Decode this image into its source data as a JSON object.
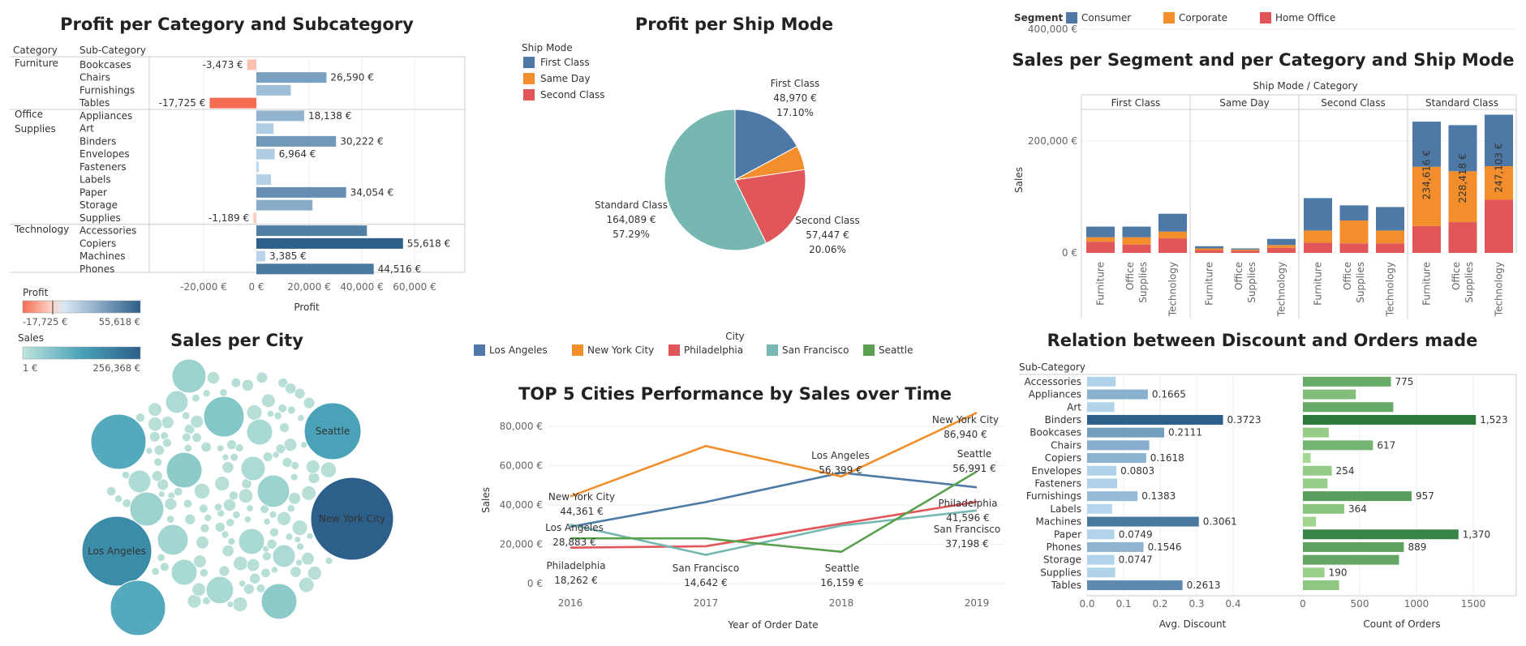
{
  "colors": {
    "consumer": "#4e79a7",
    "corporate": "#f28e2b",
    "home_office": "#e15759",
    "first_class": "#4e79a7",
    "same_day": "#f28e2b",
    "second_class": "#e15759",
    "standard_class": "#76b7b2",
    "la": "#4e79a7",
    "nyc": "#f28e2b",
    "phil": "#e15759",
    "sf": "#76b7b2",
    "seattle": "#59a14f"
  },
  "panel1": {
    "title": "Profit per Category and Subcategory",
    "col_category": "Category",
    "col_subcategory": "Sub-Category",
    "xlabel": "Profit",
    "ticks": [
      "-20,000 €",
      "0 €",
      "20,000 €",
      "40,000 €",
      "60,000 €"
    ],
    "legend_profit_title": "Profit",
    "legend_profit_min": "-17,725 €",
    "legend_profit_max": "55,618 €",
    "legend_sales_title": "Sales",
    "legend_sales_min": "1 €",
    "legend_sales_max": "256,368 €"
  },
  "panel2": {
    "title": "Profit per Ship Mode",
    "legend_title": "Ship Mode",
    "legend_items": [
      "First Class",
      "Same Day",
      "Second Class",
      "Standard Class"
    ]
  },
  "panel3": {
    "legend_title": "Segment",
    "legend_items": [
      "Consumer",
      "Corporate",
      "Home Office"
    ],
    "title": "Sales per Segment and per Category and Ship Mode",
    "header": "Ship Mode / Category",
    "ylabel": "Sales",
    "yticks": [
      "400,000 €",
      "200,000 €",
      "0 €"
    ]
  },
  "panel4": {
    "title": "Sales per City",
    "bubble_labels": [
      "Seattle",
      "New York City",
      "Los Angeles"
    ]
  },
  "panel5": {
    "legend_title": "City",
    "legend_items": [
      "Los Angeles",
      "New York City",
      "Philadelphia",
      "San Francisco",
      "Seattle"
    ],
    "title": "TOP 5 Cities Performance by Sales over Time",
    "ylabel": "Sales",
    "xlabel": "Year of Order Date",
    "yticks": [
      "80,000 €",
      "60,000 €",
      "40,000 €",
      "20,000 €",
      "0 €"
    ]
  },
  "panel6": {
    "title": "Relation between Discount and Orders made",
    "col_subcategory": "Sub-Category",
    "xlabel_left": "Avg. Discount",
    "xlabel_right": "Count of Orders",
    "ticks_left": [
      "0.0",
      "0.1",
      "0.2",
      "0.3",
      "0.4"
    ],
    "ticks_right": [
      "0",
      "500",
      "1000",
      "1500"
    ]
  },
  "chart_data": [
    {
      "type": "bar",
      "title": "Profit per Category and Subcategory",
      "xlabel": "Profit",
      "xlim": [
        -30000,
        78000
      ],
      "groups": [
        {
          "category": "Furniture",
          "rows": [
            {
              "sub": "Bookcases",
              "value": -3473,
              "label": "-3,473 €"
            },
            {
              "sub": "Chairs",
              "value": 26590,
              "label": "26,590 €"
            },
            {
              "sub": "Furnishings",
              "value": 13059,
              "label": ""
            },
            {
              "sub": "Tables",
              "value": -17725,
              "label": "-17,725 €"
            }
          ]
        },
        {
          "category": "Office Supplies",
          "rows": [
            {
              "sub": "Appliances",
              "value": 18138,
              "label": "18,138 €"
            },
            {
              "sub": "Art",
              "value": 6528,
              "label": ""
            },
            {
              "sub": "Binders",
              "value": 30222,
              "label": "30,222 €"
            },
            {
              "sub": "Envelopes",
              "value": 6964,
              "label": "6,964 €"
            },
            {
              "sub": "Fasteners",
              "value": 950,
              "label": ""
            },
            {
              "sub": "Labels",
              "value": 5546,
              "label": ""
            },
            {
              "sub": "Paper",
              "value": 34054,
              "label": "34,054 €"
            },
            {
              "sub": "Storage",
              "value": 21279,
              "label": ""
            },
            {
              "sub": "Supplies",
              "value": -1189,
              "label": "-1,189 €"
            }
          ]
        },
        {
          "category": "Technology",
          "rows": [
            {
              "sub": "Accessories",
              "value": 41937,
              "label": ""
            },
            {
              "sub": "Copiers",
              "value": 55618,
              "label": "55,618 €"
            },
            {
              "sub": "Machines",
              "value": 3385,
              "label": "3,385 €"
            },
            {
              "sub": "Phones",
              "value": 44516,
              "label": "44,516 €"
            }
          ]
        }
      ]
    },
    {
      "type": "pie",
      "title": "Profit per Ship Mode",
      "slices": [
        {
          "name": "First Class",
          "value": 48970,
          "label": "48,970 €",
          "pct": "17.10%"
        },
        {
          "name": "Same Day",
          "value": 15892,
          "label": "",
          "pct": ""
        },
        {
          "name": "Second Class",
          "value": 57447,
          "label": "57,447 €",
          "pct": "20.06%"
        },
        {
          "name": "Standard Class",
          "value": 164089,
          "label": "164,089 €",
          "pct": "57.29%"
        }
      ]
    },
    {
      "type": "bar",
      "stacked": true,
      "title": "Sales per Segment and per Category and Ship Mode",
      "ylabel": "Sales",
      "ylim": [
        0,
        520000
      ],
      "ship_modes": [
        "First Class",
        "Same Day",
        "Second Class",
        "Standard Class"
      ],
      "categories": [
        "Furniture",
        "Office Supplies",
        "Technology"
      ],
      "series_order": [
        "Home Office",
        "Corporate",
        "Consumer"
      ],
      "bars": [
        [
          [
            20000,
            28000,
            47000
          ],
          [
            15000,
            28000,
            47000
          ],
          [
            26000,
            38000,
            70000
          ]
        ],
        [
          [
            5000,
            8000,
            12000
          ],
          [
            4000,
            6000,
            8000
          ],
          [
            9000,
            14000,
            25000
          ]
        ],
        [
          [
            18000,
            40000,
            98000
          ],
          [
            17000,
            58000,
            85000
          ],
          [
            17000,
            40000,
            82000
          ]
        ],
        [
          [
            48000,
            154000,
            234616
          ],
          [
            55000,
            146000,
            228418
          ],
          [
            95000,
            155000,
            247103
          ]
        ]
      ],
      "bar_labels": [
        [
          null,
          null,
          null
        ],
        [
          null,
          null,
          null
        ],
        [
          null,
          null,
          null
        ],
        [
          "234,616 €",
          "228,418 €",
          "247,103 €"
        ]
      ]
    },
    {
      "type": "bubble",
      "title": "Sales per City",
      "big": [
        {
          "city": "New York City",
          "value": 256368
        },
        {
          "city": "Los Angeles",
          "value": 175851
        },
        {
          "city": "Seattle",
          "value": 119541
        }
      ]
    },
    {
      "type": "line",
      "title": "TOP 5 Cities Performance by Sales over Time",
      "x": [
        "2016",
        "2017",
        "2018",
        "2019"
      ],
      "ylim": [
        0,
        90000
      ],
      "series": [
        {
          "name": "Los Angeles",
          "values": [
            28883,
            41500,
            56399,
            49000
          ]
        },
        {
          "name": "New York City",
          "values": [
            44361,
            70000,
            54500,
            86940
          ]
        },
        {
          "name": "Philadelphia",
          "values": [
            18262,
            19000,
            30500,
            41596
          ]
        },
        {
          "name": "San Francisco",
          "values": [
            30000,
            14642,
            29500,
            37198
          ]
        },
        {
          "name": "Seattle",
          "values": [
            23000,
            23000,
            16159,
            56991
          ]
        }
      ],
      "annotations": [
        {
          "city": "New York City",
          "value": "44,361 €",
          "year": "2016"
        },
        {
          "city": "Los Angeles",
          "value": "28,883 €",
          "year": "2016"
        },
        {
          "city": "Philadelphia",
          "value": "18,262 €",
          "year": "2016"
        },
        {
          "city": "San Francisco",
          "value": "14,642 €",
          "year": "2017"
        },
        {
          "city": "Los Angeles",
          "value": "56,399 €",
          "year": "2018"
        },
        {
          "city": "Seattle",
          "value": "16,159 €",
          "year": "2018"
        },
        {
          "city": "New York City",
          "value": "86,940 €",
          "year": "2019"
        },
        {
          "city": "Seattle",
          "value": "56,991 €",
          "year": "2019"
        },
        {
          "city": "Philadelphia",
          "value": "41,596 €",
          "year": "2019"
        },
        {
          "city": "San Francisco",
          "value": "37,198 €",
          "year": "2019"
        }
      ]
    },
    {
      "type": "bar",
      "title": "Relation between Discount and Orders made",
      "categories": [
        "Accessories",
        "Appliances",
        "Art",
        "Binders",
        "Bookcases",
        "Chairs",
        "Copiers",
        "Envelopes",
        "Fasteners",
        "Furnishings",
        "Labels",
        "Machines",
        "Paper",
        "Phones",
        "Storage",
        "Supplies",
        "Tables"
      ],
      "avg_discount": [
        0.0784,
        0.1665,
        0.0747,
        0.3723,
        0.2111,
        0.1703,
        0.1618,
        0.0803,
        0.0822,
        0.1383,
        0.0687,
        0.3061,
        0.0749,
        0.1546,
        0.0747,
        0.0768,
        0.2613
      ],
      "avg_discount_labels": [
        "",
        "0.1665",
        "",
        "0.3723",
        "0.2111",
        "",
        "0.1618",
        "0.0803",
        "",
        "0.1383",
        "",
        "0.3061",
        "0.0749",
        "0.1546",
        "0.0747",
        "",
        "0.2613"
      ],
      "count_orders": [
        775,
        466,
        796,
        1523,
        228,
        617,
        68,
        254,
        217,
        957,
        364,
        115,
        1370,
        889,
        846,
        190,
        319
      ],
      "count_labels": [
        "775",
        "",
        "",
        "1,523",
        "",
        "617",
        "",
        "254",
        "",
        "957",
        "364",
        "",
        "1,370",
        "889",
        "",
        "190",
        ""
      ],
      "xlim_left": [
        0,
        0.42
      ],
      "xlim_right": [
        0,
        1800
      ]
    }
  ]
}
